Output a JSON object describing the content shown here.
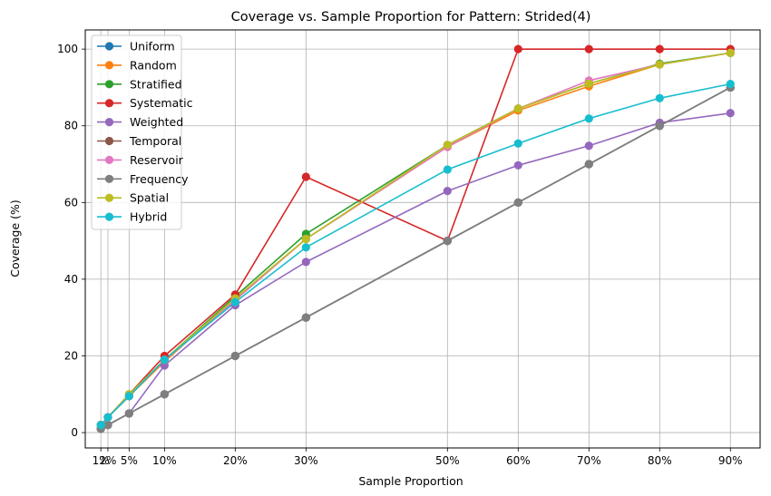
{
  "chart_data": {
    "type": "line",
    "title": "Coverage vs. Sample Proportion for Pattern: Strided(4)",
    "xlabel": "Sample Proportion",
    "ylabel": "Coverage (%)",
    "x": [
      1,
      2,
      5,
      10,
      20,
      30,
      50,
      60,
      70,
      80,
      90
    ],
    "x_tick_labels": [
      "1%",
      "2%",
      "5%",
      "10%",
      "20%",
      "30%",
      "50%",
      "60%",
      "70%",
      "80%",
      "90%"
    ],
    "xlim": [
      -1.2,
      94.2
    ],
    "ylim": [
      -4,
      105
    ],
    "y_ticks": [
      0,
      20,
      40,
      60,
      80,
      100
    ],
    "grid": true,
    "legend_position": "upper-left",
    "series": [
      {
        "name": "Uniform",
        "color": "#1f77b4",
        "values": [
          1,
          2,
          5,
          10,
          20,
          30,
          50,
          60,
          70,
          80,
          90
        ]
      },
      {
        "name": "Random",
        "color": "#ff7f0e",
        "values": [
          2,
          4,
          9.5,
          18.5,
          35,
          50.5,
          74.5,
          84,
          90.3,
          96,
          99
        ]
      },
      {
        "name": "Stratified",
        "color": "#2ca02c",
        "values": [
          2,
          4,
          9.5,
          19,
          35.5,
          51.8,
          75,
          84.5,
          91,
          96.2,
          99
        ]
      },
      {
        "name": "Systematic",
        "color": "#d62728",
        "values": [
          2,
          4,
          10,
          20,
          36,
          66.7,
          50,
          100,
          100,
          100,
          100
        ]
      },
      {
        "name": "Weighted",
        "color": "#9467bd",
        "values": [
          1,
          2,
          5,
          17.5,
          33.2,
          44.5,
          63,
          69.7,
          74.8,
          80.8,
          83.3
        ]
      },
      {
        "name": "Temporal",
        "color": "#8c564b",
        "values": [
          1,
          2,
          5,
          10,
          20,
          30,
          50,
          60,
          70,
          80,
          90
        ]
      },
      {
        "name": "Reservoir",
        "color": "#e377c2",
        "values": [
          2,
          4,
          9.5,
          19,
          34.5,
          50.5,
          74.5,
          84.5,
          91.8,
          96,
          99
        ]
      },
      {
        "name": "Frequency",
        "color": "#7f7f7f",
        "values": [
          1,
          2,
          5,
          10,
          20,
          30,
          50,
          60,
          70,
          80,
          90
        ]
      },
      {
        "name": "Spatial",
        "color": "#bcbd22",
        "values": [
          2,
          4,
          10,
          19,
          35,
          50.5,
          75,
          84.5,
          91,
          96,
          99
        ]
      },
      {
        "name": "Hybrid",
        "color": "#17becf",
        "values": [
          2,
          4,
          9.5,
          19,
          34,
          48.3,
          68.6,
          75.4,
          81.9,
          87.2,
          90.9
        ]
      }
    ]
  }
}
